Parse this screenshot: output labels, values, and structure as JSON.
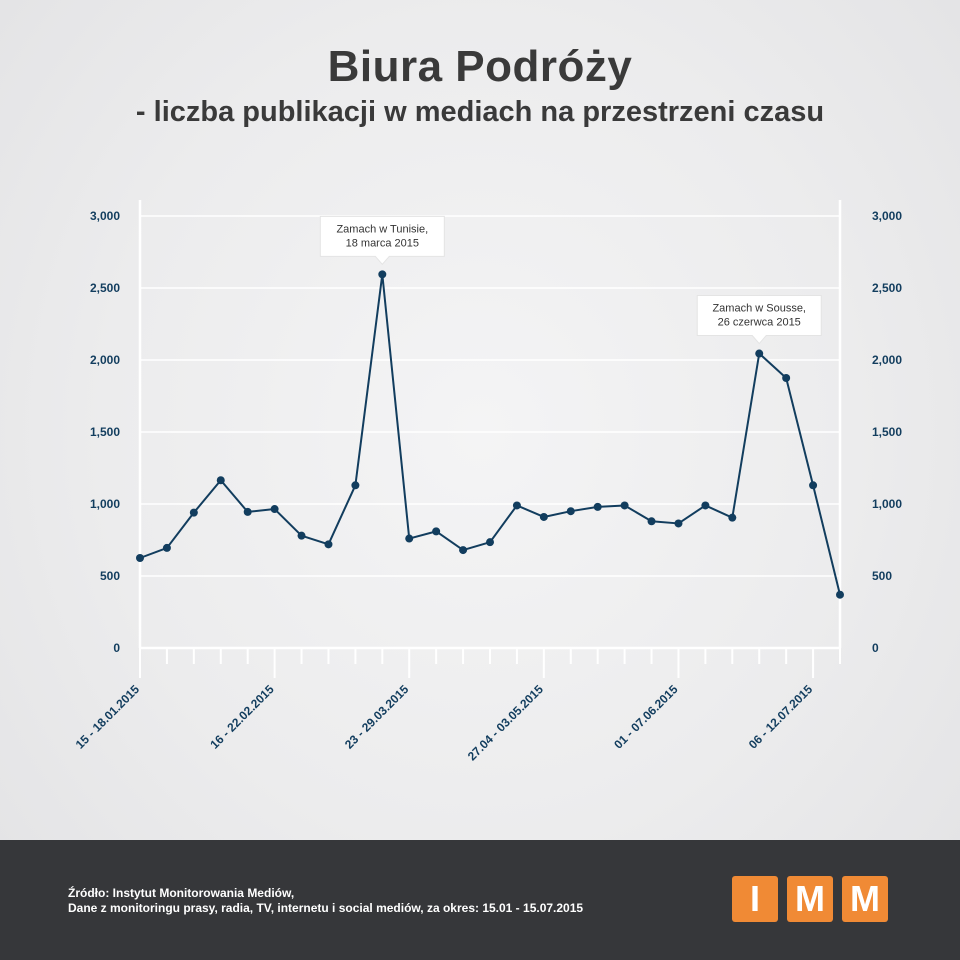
{
  "title": "Biura Podróży",
  "subtitle": "- liczba publikacji w mediach na przestrzeni czasu",
  "chart_data": {
    "type": "line",
    "ylim": [
      0,
      3000
    ],
    "y_ticks": [
      "0",
      "500",
      "1,000",
      "1,500",
      "2,000",
      "2,500",
      "3,000"
    ],
    "y_tick_values": [
      0,
      500,
      1000,
      1500,
      2000,
      2500,
      3000
    ],
    "x_labels": [
      {
        "index": 0,
        "text": "15 - 18.01.2015"
      },
      {
        "index": 5,
        "text": "16 - 22.02.2015"
      },
      {
        "index": 10,
        "text": "23 - 29.03.2015"
      },
      {
        "index": 15,
        "text": "27.04 - 03.05.2015"
      },
      {
        "index": 20,
        "text": "01 - 07.06.2015"
      },
      {
        "index": 25,
        "text": "06 - 12.07.2015"
      }
    ],
    "values": [
      625,
      695,
      940,
      1165,
      945,
      965,
      780,
      720,
      1130,
      2595,
      760,
      810,
      680,
      735,
      990,
      910,
      950,
      980,
      990,
      880,
      865,
      990,
      905,
      2045,
      1875,
      1130,
      370
    ],
    "annotations": [
      {
        "index": 9,
        "text": [
          "Zamach w Tunisie,",
          "18 marca 2015"
        ]
      },
      {
        "index": 23,
        "text": [
          "Zamach w Sousse,",
          "26 czerwca 2015"
        ]
      }
    ],
    "grid": true,
    "colors": {
      "line": "#123d5e",
      "text": "#123d5e"
    }
  },
  "footer": {
    "source_line1": "Źródło: Instytut Monitorowania Mediów,",
    "source_line2": "Dane z monitoringu prasy, radia, TV, internetu i social mediów, za okres: 15.01 - 15.07.2015",
    "logo": [
      "I",
      "M",
      "M"
    ],
    "logo_color": "#f08a35"
  }
}
